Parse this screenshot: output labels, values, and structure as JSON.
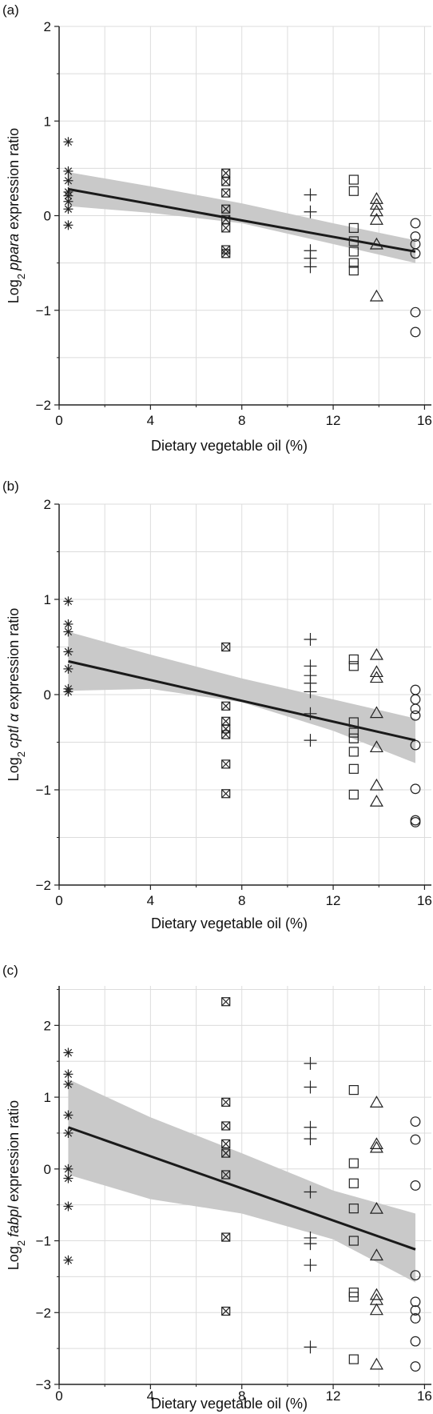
{
  "chart_data": [
    {
      "type": "scatter",
      "panel_label": "(a)",
      "xlabel": "Dietary vegetable oil (%)",
      "ylabel_prefix": "Log",
      "ylabel_sub": "2",
      "ylabel_gene": "ppara",
      "ylabel_suffix": " expression ratio",
      "xlim": [
        0,
        16.3
      ],
      "ylim": [
        -2,
        2
      ],
      "xticks": [
        "0",
        "4",
        "8",
        "12",
        "16"
      ],
      "xtick_values": [
        0,
        4,
        8,
        12,
        16
      ],
      "yticks": [
        "2",
        "1",
        "0",
        "−1",
        "−2"
      ],
      "ytick_values": [
        2,
        1,
        0,
        -1,
        -2
      ],
      "grid": true,
      "regression": {
        "x": [
          0.4,
          15.6
        ],
        "y": [
          0.28,
          -0.38
        ]
      },
      "band": {
        "x": [
          0.4,
          4,
          8,
          12,
          15.6
        ],
        "upper": [
          0.46,
          0.31,
          0.13,
          -0.08,
          -0.26
        ],
        "lower": [
          0.1,
          0.03,
          -0.08,
          -0.3,
          -0.5
        ]
      },
      "series": [
        {
          "marker": "asterisk",
          "x": 0.4,
          "y": [
            0.78,
            0.47,
            0.37,
            0.25,
            0.21,
            0.15,
            0.07,
            -0.1
          ]
        },
        {
          "marker": "boxx",
          "x": 7.3,
          "y": [
            0.45,
            0.36,
            0.24,
            0.07,
            -0.04,
            -0.13,
            -0.36,
            -0.4
          ]
        },
        {
          "marker": "plus",
          "x": 11.0,
          "y": [
            0.22,
            0.04,
            -0.37,
            -0.45,
            -0.54
          ]
        },
        {
          "marker": "square",
          "x": 12.9,
          "y": [
            0.38,
            0.26,
            -0.13,
            -0.27,
            -0.38,
            -0.5,
            -0.58
          ]
        },
        {
          "marker": "triangle",
          "x": 13.9,
          "y": [
            0.18,
            0.12,
            0.05,
            -0.04,
            -0.3,
            -0.85
          ]
        },
        {
          "marker": "circle",
          "x": 15.6,
          "y": [
            -0.08,
            -0.22,
            -0.3,
            -0.4,
            -1.02,
            -1.23
          ]
        }
      ]
    },
    {
      "type": "scatter",
      "panel_label": "(b)",
      "xlabel": "Dietary vegetable oil (%)",
      "ylabel_prefix": "Log",
      "ylabel_sub": "2",
      "ylabel_gene": "cptl α",
      "ylabel_suffix": " expression ratio",
      "xlim": [
        0,
        16.3
      ],
      "ylim": [
        -2,
        2
      ],
      "xticks": [
        "0",
        "4",
        "8",
        "12",
        "16"
      ],
      "xtick_values": [
        0,
        4,
        8,
        12,
        16
      ],
      "yticks": [
        "2",
        "1",
        "0",
        "−1",
        "−2"
      ],
      "ytick_values": [
        2,
        1,
        0,
        -1,
        -2
      ],
      "grid": true,
      "regression": {
        "x": [
          0.4,
          15.6
        ],
        "y": [
          0.35,
          -0.48
        ]
      },
      "band": {
        "x": [
          0.4,
          4,
          8,
          12,
          15.6
        ],
        "upper": [
          0.66,
          0.42,
          0.17,
          -0.05,
          -0.25
        ],
        "lower": [
          0.04,
          0.06,
          -0.08,
          -0.38,
          -0.72
        ]
      },
      "series": [
        {
          "marker": "asterisk",
          "x": 0.4,
          "y": [
            0.98,
            0.74,
            0.66,
            0.45,
            0.27,
            0.06,
            0.03
          ]
        },
        {
          "marker": "boxx",
          "x": 7.3,
          "y": [
            0.5,
            -0.12,
            -0.28,
            -0.36,
            -0.42,
            -0.73,
            -1.04
          ]
        },
        {
          "marker": "plus",
          "x": 11.0,
          "y": [
            0.58,
            0.3,
            0.2,
            0.12,
            0.03,
            -0.2,
            -0.48
          ]
        },
        {
          "marker": "square",
          "x": 12.9,
          "y": [
            0.37,
            0.3,
            -0.29,
            -0.4,
            -0.46,
            -0.6,
            -0.78,
            -1.05
          ]
        },
        {
          "marker": "triangle",
          "x": 13.9,
          "y": [
            0.42,
            0.24,
            0.18,
            -0.19,
            -0.55,
            -0.95,
            -1.12
          ]
        },
        {
          "marker": "circle",
          "x": 15.6,
          "y": [
            0.05,
            -0.05,
            -0.15,
            -0.22,
            -0.53,
            -0.99,
            -1.32,
            -1.34
          ]
        }
      ]
    },
    {
      "type": "scatter",
      "panel_label": "(c)",
      "xlabel": "Dietary vegetable oil (%)",
      "ylabel_prefix": "Log",
      "ylabel_sub": "2",
      "ylabel_gene": "fabpl",
      "ylabel_suffix": " expression ratio",
      "xlim": [
        0,
        16.3
      ],
      "ylim": [
        -3,
        2.55
      ],
      "xticks": [
        "0",
        "4",
        "8",
        "12",
        "16"
      ],
      "xtick_values": [
        0,
        4,
        8,
        12,
        16
      ],
      "yticks": [
        "2",
        "1",
        "0",
        "−1",
        "−2",
        "−3"
      ],
      "ytick_values": [
        2,
        1,
        0,
        -1,
        -2,
        -3
      ],
      "grid": true,
      "regression": {
        "x": [
          0.4,
          15.6
        ],
        "y": [
          0.58,
          -1.12
        ]
      },
      "band": {
        "x": [
          0.4,
          4,
          8,
          12,
          15.6
        ],
        "upper": [
          1.25,
          0.72,
          0.22,
          -0.3,
          -0.62
        ],
        "lower": [
          -0.08,
          -0.42,
          -0.62,
          -0.98,
          -1.58
        ]
      },
      "series": [
        {
          "marker": "asterisk",
          "x": 0.4,
          "y": [
            1.62,
            1.32,
            1.18,
            0.75,
            0.5,
            0.0,
            -0.13,
            -0.52,
            -1.27
          ]
        },
        {
          "marker": "boxx",
          "x": 7.3,
          "y": [
            2.33,
            0.93,
            0.6,
            0.35,
            0.22,
            -0.08,
            -0.95,
            -1.98
          ]
        },
        {
          "marker": "plus",
          "x": 11.0,
          "y": [
            1.47,
            1.14,
            0.58,
            0.42,
            -0.32,
            -0.96,
            -1.04,
            -1.34,
            -2.48
          ]
        },
        {
          "marker": "square",
          "x": 12.9,
          "y": [
            1.1,
            0.08,
            -0.2,
            -0.55,
            -1.0,
            -1.72,
            -1.78,
            -2.65
          ]
        },
        {
          "marker": "triangle",
          "x": 13.9,
          "y": [
            0.93,
            0.35,
            0.3,
            -0.55,
            -1.2,
            -1.75,
            -1.82,
            -1.96,
            -2.72
          ]
        },
        {
          "marker": "circle",
          "x": 15.6,
          "y": [
            0.66,
            0.41,
            -0.23,
            -1.48,
            -1.85,
            -1.97,
            -2.08,
            -2.4,
            -2.75
          ]
        }
      ]
    }
  ],
  "colors": {
    "band": "#c9c9c9",
    "line": "#1a1a1a",
    "marker": "#222222",
    "grid": "#dcdcdc",
    "axis": "#222222"
  }
}
